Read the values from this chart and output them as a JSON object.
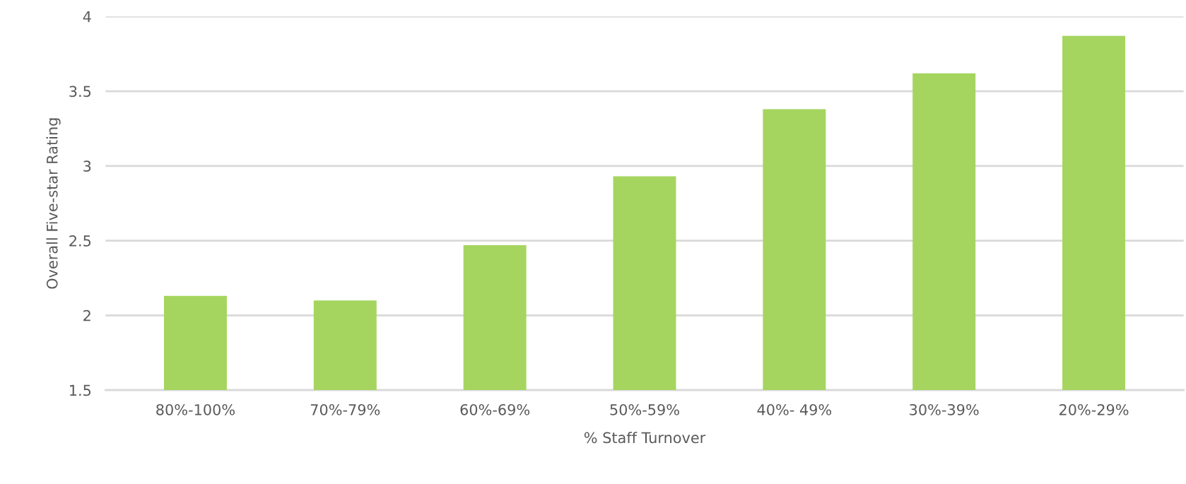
{
  "chart_data": {
    "type": "bar",
    "xlabel": "% Staff Turnover",
    "ylabel": "Overall Five-star Rating",
    "categories": [
      "80%-100%",
      "70%-79%",
      "60%-69%",
      "50%-59%",
      "40%- 49%",
      "30%-39%",
      "20%-29%"
    ],
    "values": [
      2.13,
      2.1,
      2.47,
      2.93,
      3.38,
      3.62,
      3.87
    ],
    "color": "#a5d55f",
    "ylim": [
      1.5,
      4
    ],
    "yticks": [
      1.5,
      2,
      2.5,
      3,
      3.5,
      4
    ],
    "grid": "y",
    "legend": false
  }
}
